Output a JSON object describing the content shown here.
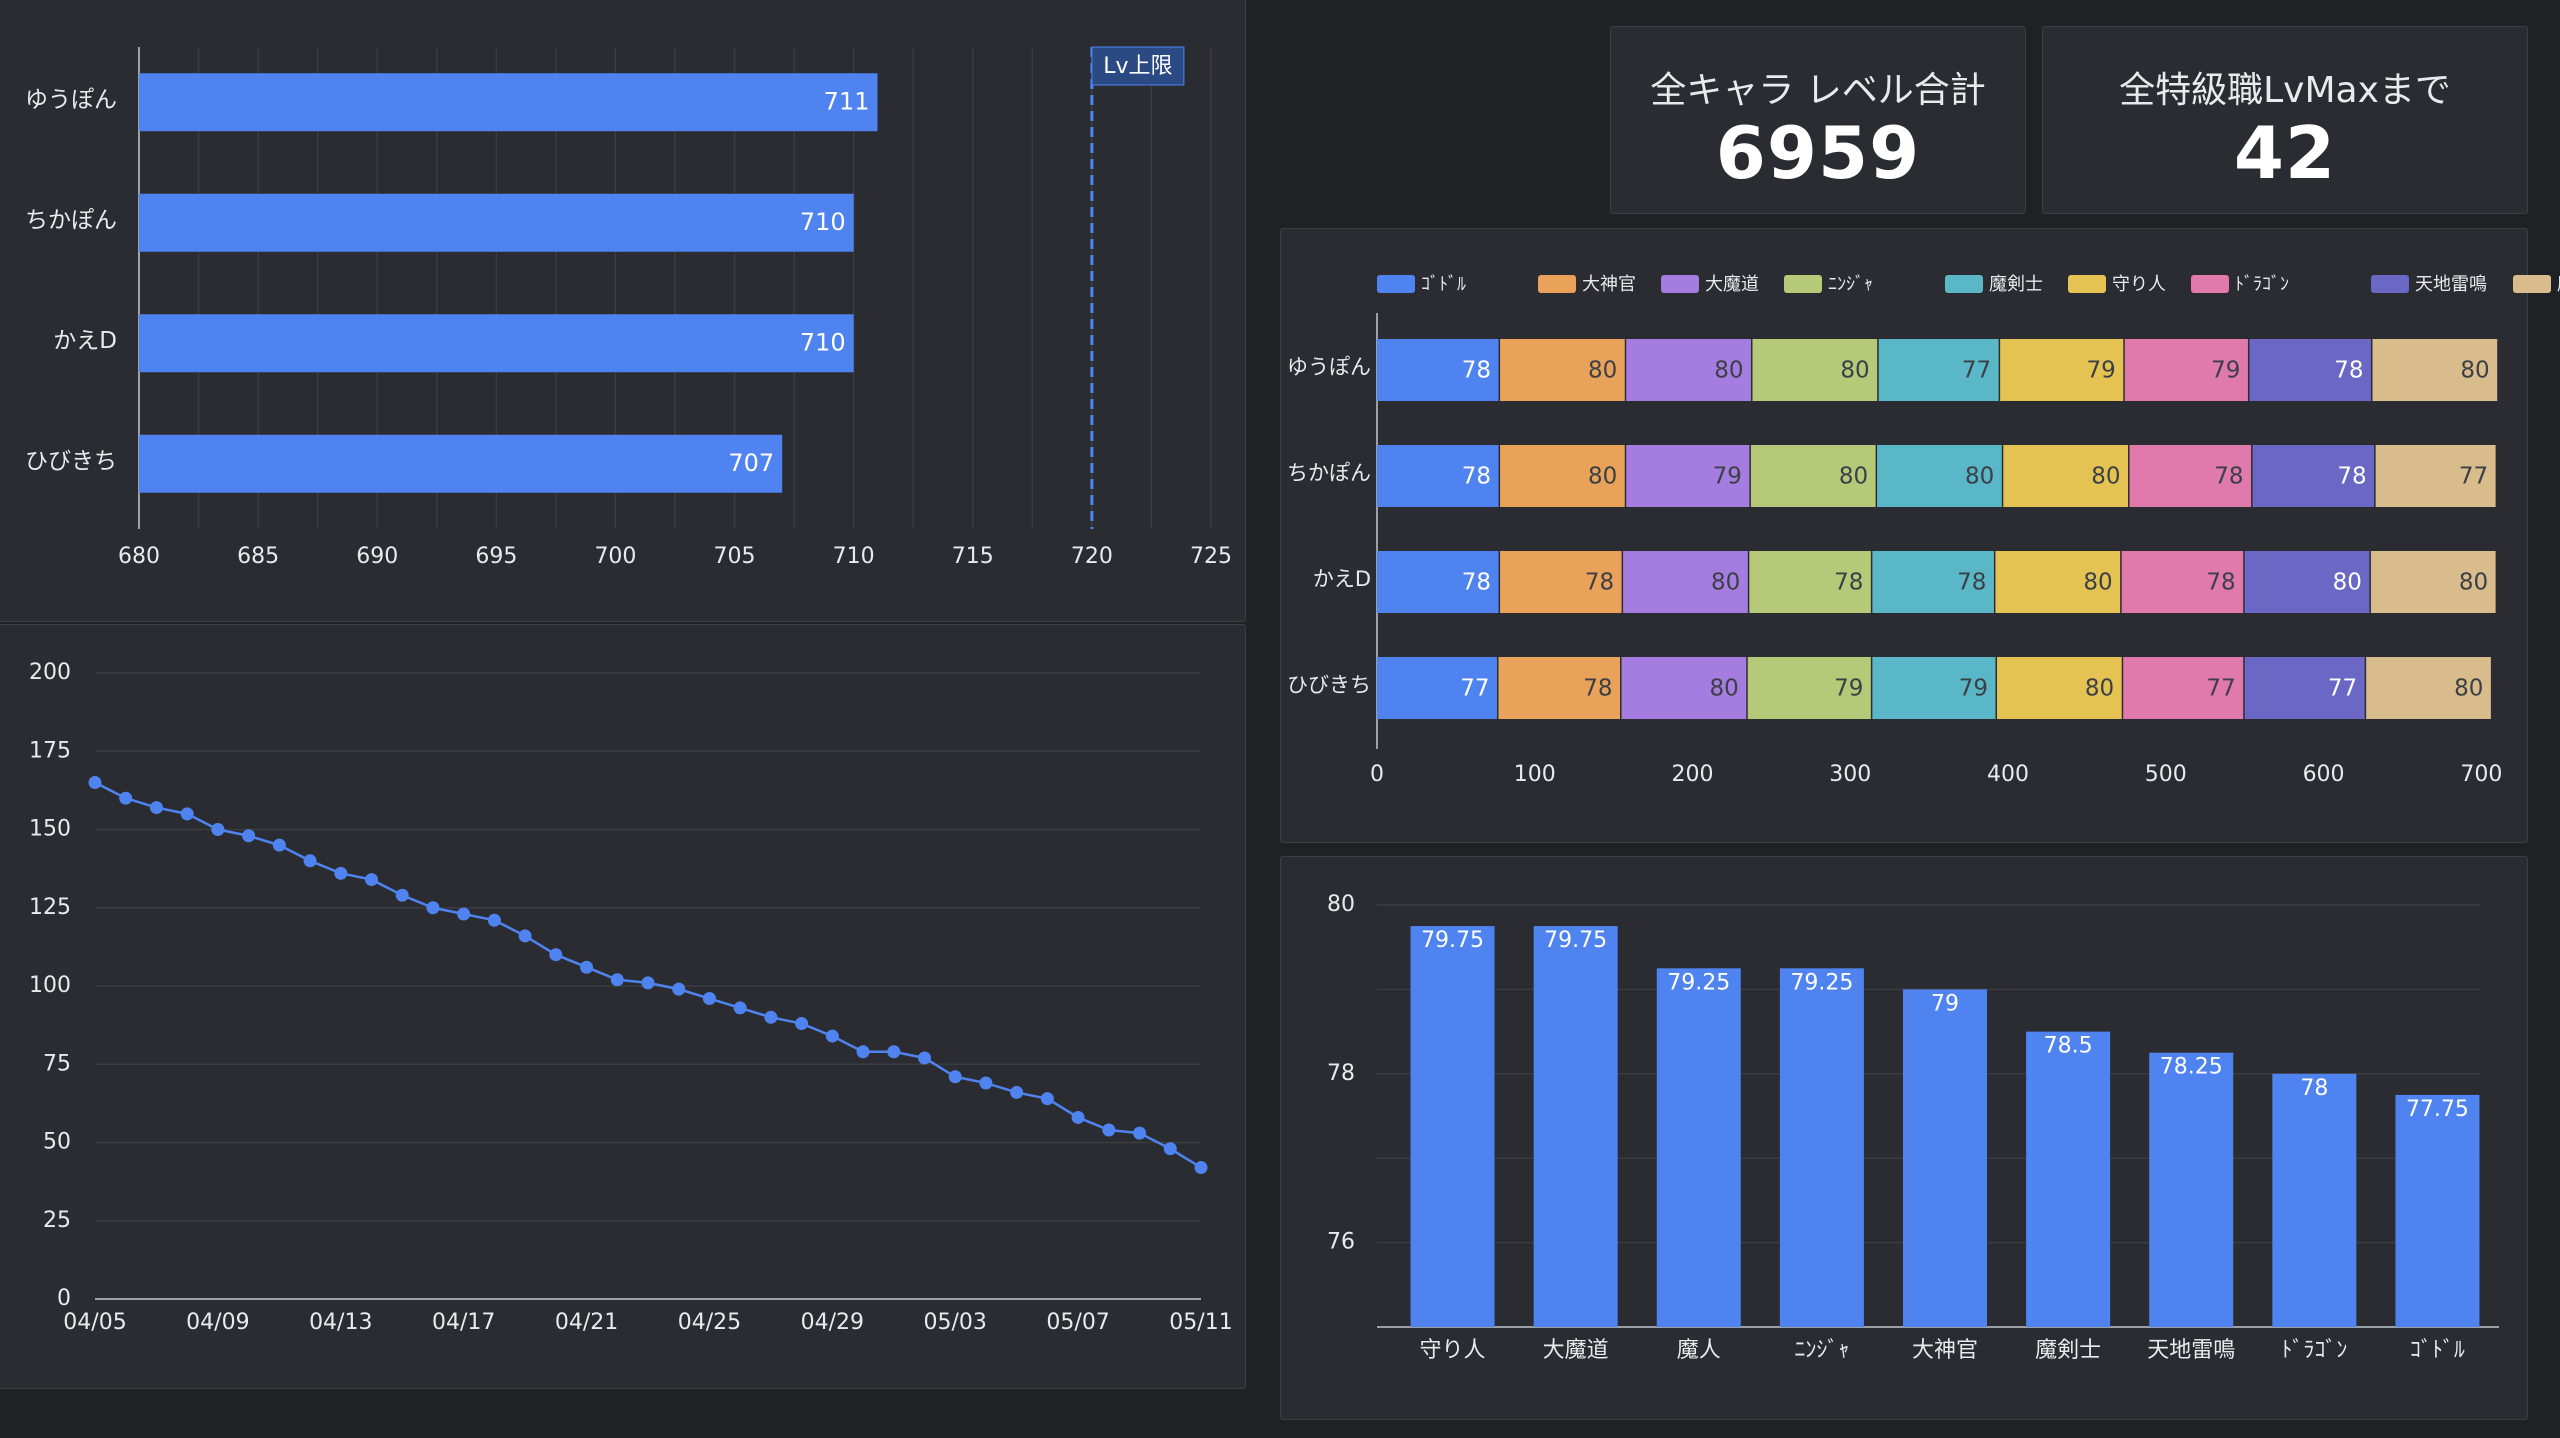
{
  "colors": {
    "bar": "#4f84f0",
    "text": "#e8eaed",
    "grid": "#3a3c41",
    "stack": [
      "#4f84f0",
      "#e8a25a",
      "#a57de0",
      "#b6c978",
      "#5ab7c7",
      "#e5c352",
      "#e07aad",
      "#6a67c5",
      "#d9bc8c"
    ]
  },
  "scorecards": [
    {
      "label": "全キャラ レベル合計",
      "value": "6959"
    },
    {
      "label": "全特級職LvMaxまで",
      "value": "42"
    }
  ],
  "chart_data": [
    {
      "type": "bar",
      "orientation": "horizontal",
      "categories": [
        "ゆうぽん",
        "ちかぽん",
        "かえD",
        "ひびきち"
      ],
      "values": [
        711,
        710,
        710,
        707
      ],
      "xlim": [
        680,
        725
      ],
      "xticks": [
        680,
        685,
        690,
        695,
        700,
        705,
        710,
        715,
        720,
        725
      ],
      "grid": true,
      "reference_line": {
        "value": 720,
        "label": "Lv上限"
      }
    },
    {
      "type": "line",
      "x": [
        "04/05",
        "04/06",
        "04/07",
        "04/08",
        "04/09",
        "04/10",
        "04/11",
        "04/12",
        "04/13",
        "04/14",
        "04/15",
        "04/16",
        "04/17",
        "04/18",
        "04/19",
        "04/20",
        "04/21",
        "04/22",
        "04/23",
        "04/24",
        "04/25",
        "04/26",
        "04/27",
        "04/28",
        "04/29",
        "04/30",
        "05/01",
        "05/02",
        "05/03",
        "05/04",
        "05/05",
        "05/06",
        "05/07",
        "05/08",
        "05/09",
        "05/10",
        "05/11"
      ],
      "values": [
        165,
        160,
        157,
        155,
        150,
        148,
        145,
        140,
        136,
        134,
        129,
        125,
        123,
        121,
        116,
        110,
        106,
        102,
        101,
        99,
        96,
        93,
        90,
        88,
        84,
        79,
        79,
        77,
        71,
        69,
        66,
        64,
        58,
        54,
        53,
        48,
        42
      ],
      "xticks": [
        "04/05",
        "04/09",
        "04/13",
        "04/17",
        "04/21",
        "04/25",
        "04/29",
        "05/03",
        "05/07",
        "05/11"
      ],
      "ylim": [
        0,
        200
      ],
      "yticks": [
        0,
        25,
        50,
        75,
        100,
        125,
        150,
        175,
        200
      ],
      "grid": true
    },
    {
      "type": "bar",
      "orientation": "horizontal",
      "stacked": true,
      "categories": [
        "ゆうぽん",
        "ちかぽん",
        "かえD",
        "ひびきち"
      ],
      "series": [
        {
          "name": "ｺﾞﾄﾞﾙ",
          "values": [
            78,
            78,
            78,
            77
          ]
        },
        {
          "name": "大神官",
          "values": [
            80,
            80,
            78,
            78
          ]
        },
        {
          "name": "大魔道",
          "values": [
            80,
            79,
            80,
            80
          ]
        },
        {
          "name": "ﾆﾝｼﾞｬ",
          "values": [
            80,
            80,
            78,
            79
          ]
        },
        {
          "name": "魔剣士",
          "values": [
            77,
            80,
            78,
            79
          ]
        },
        {
          "name": "守り人",
          "values": [
            79,
            80,
            80,
            80
          ]
        },
        {
          "name": "ﾄﾞﾗｺﾞﾝ",
          "values": [
            79,
            78,
            78,
            77
          ]
        },
        {
          "name": "天地雷鳴",
          "values": [
            78,
            78,
            80,
            77
          ]
        },
        {
          "name": "魔人",
          "values": [
            80,
            77,
            80,
            80
          ]
        }
      ],
      "xlim": [
        0,
        715
      ],
      "xticks": [
        0,
        100,
        200,
        300,
        400,
        500,
        600,
        700
      ],
      "legend": "top"
    },
    {
      "type": "bar",
      "categories": [
        "守り人",
        "大魔道",
        "魔人",
        "ﾆﾝｼﾞｬ",
        "大神官",
        "魔剣士",
        "天地雷鳴",
        "ﾄﾞﾗｺﾞﾝ",
        "ｺﾞﾄﾞﾙ"
      ],
      "values": [
        79.75,
        79.75,
        79.25,
        79.25,
        79,
        78.5,
        78.25,
        78,
        77.75
      ],
      "ylim": [
        75.0,
        80.0
      ],
      "yticks": [
        76,
        78,
        80
      ],
      "grid": true
    }
  ]
}
